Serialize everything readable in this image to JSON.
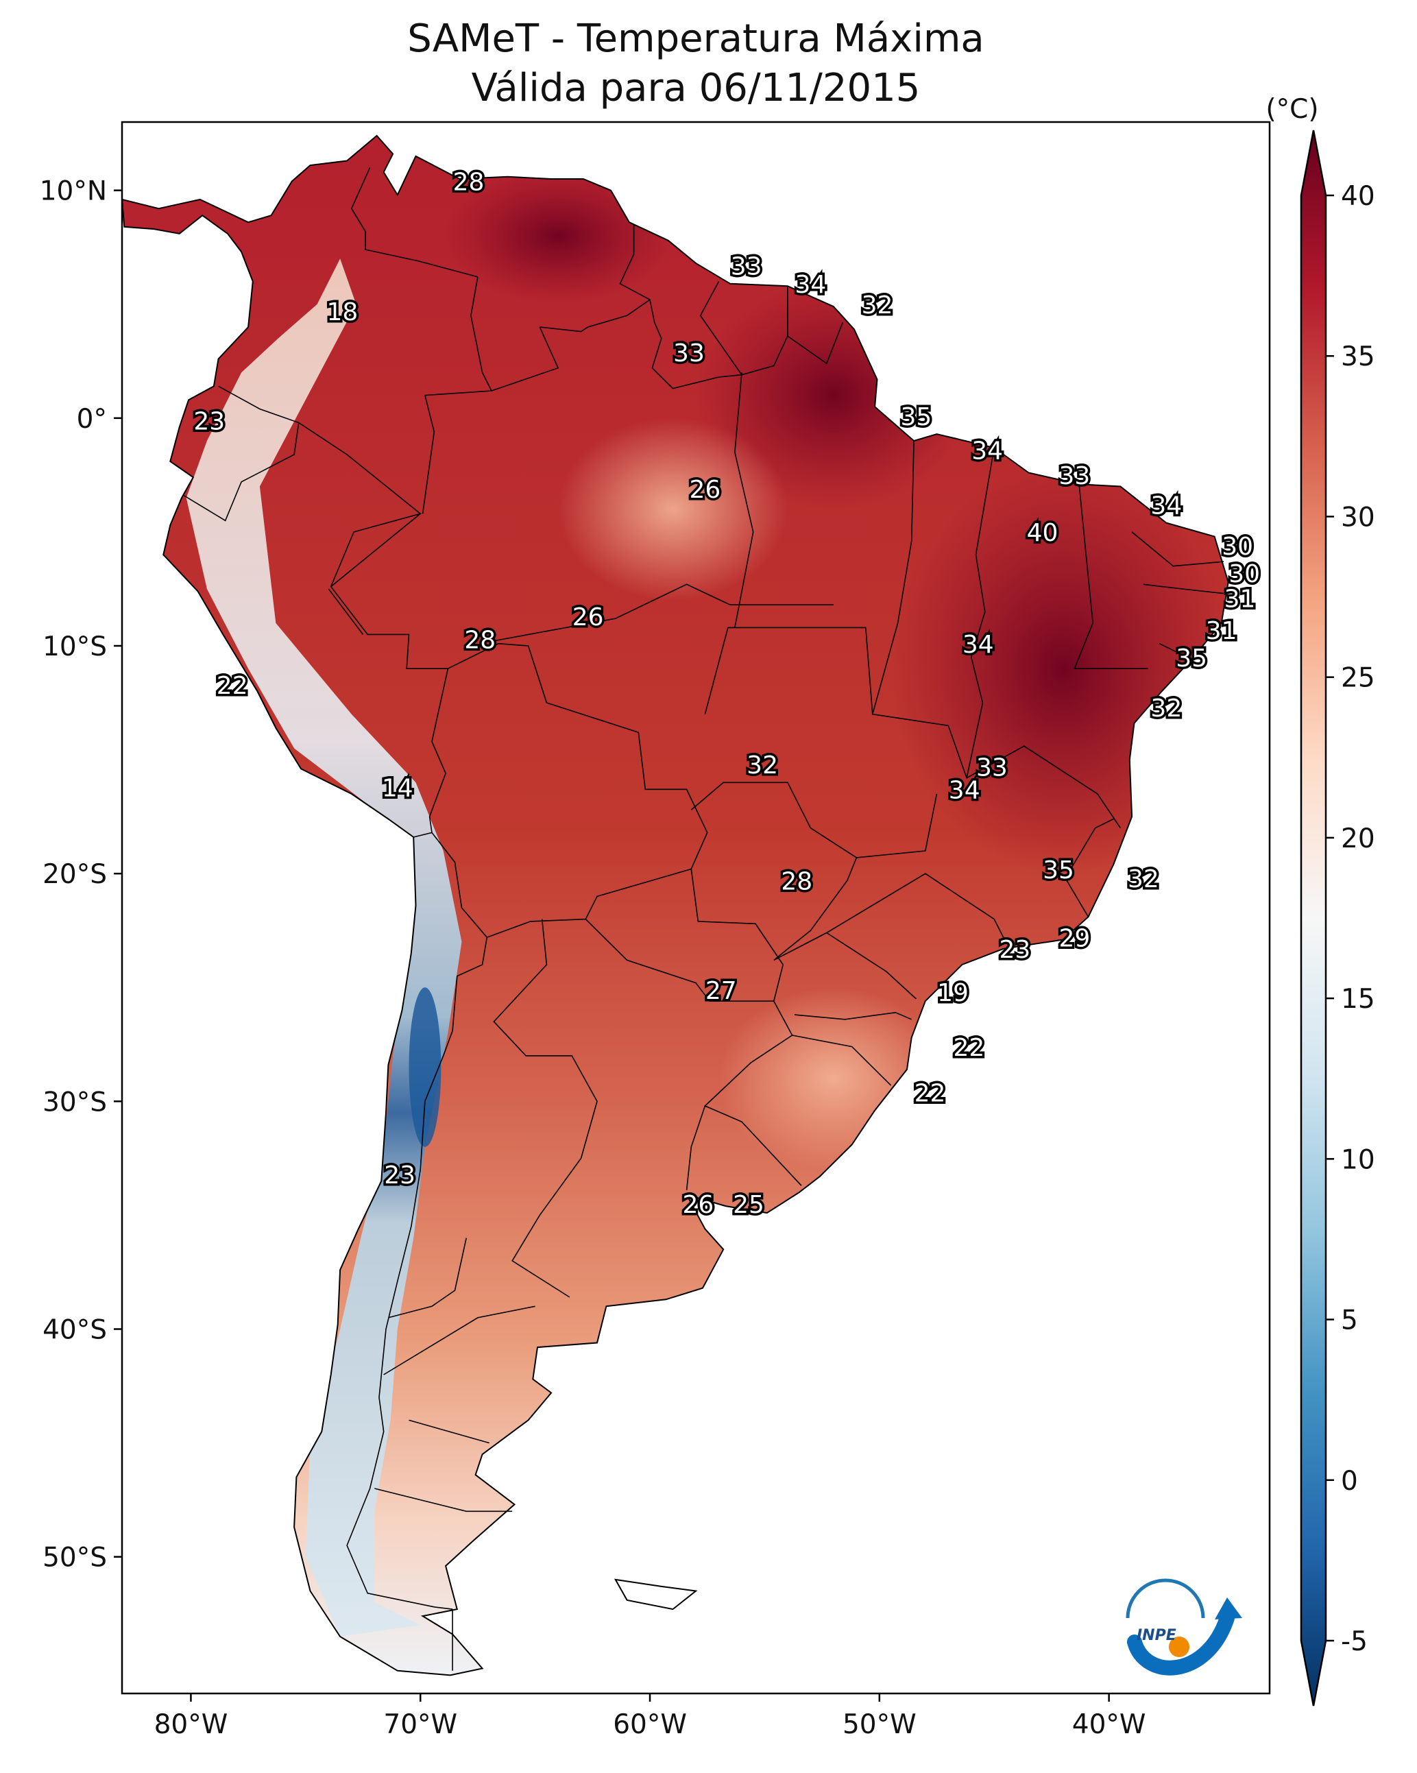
{
  "title": {
    "line1": "SAMeT - Temperatura Máxima",
    "line2": "Válida para 06/11/2015"
  },
  "map": {
    "lat_range": [
      -56,
      13
    ],
    "lon_range": [
      -83,
      -33
    ],
    "lat_ticks": [
      {
        "value": 10,
        "label": "10°N"
      },
      {
        "value": 0,
        "label": "0°"
      },
      {
        "value": -10,
        "label": "10°S"
      },
      {
        "value": -20,
        "label": "20°S"
      },
      {
        "value": -30,
        "label": "30°S"
      },
      {
        "value": -40,
        "label": "40°S"
      },
      {
        "value": -50,
        "label": "50°S"
      }
    ],
    "lon_ticks": [
      {
        "value": -80,
        "label": "80°W"
      },
      {
        "value": -70,
        "label": "70°W"
      },
      {
        "value": -60,
        "label": "60°W"
      },
      {
        "value": -50,
        "label": "50°W"
      },
      {
        "value": -40,
        "label": "40°W"
      }
    ]
  },
  "colorbar": {
    "unit": "(°C)",
    "min": -5,
    "max": 40,
    "ticks": [
      "40",
      "35",
      "30",
      "25",
      "20",
      "15",
      "10",
      "5",
      "0",
      "-5"
    ],
    "tick_values": [
      40,
      35,
      30,
      25,
      20,
      15,
      10,
      5,
      0,
      -5
    ],
    "colors": [
      "#053061",
      "#2166ac",
      "#4393c3",
      "#92c5de",
      "#d1e5f0",
      "#f7f7f7",
      "#fddbc7",
      "#f4a582",
      "#d6604d",
      "#b2182b",
      "#67001f"
    ]
  },
  "chart_data": {
    "type": "heatmap",
    "title": "SAMeT - Temperatura Máxima Válida para 06/11/2015",
    "variable": "Temperatura Máxima",
    "unit": "°C",
    "station_labels": [
      {
        "lon": -67.9,
        "lat": 10.3,
        "value": "28"
      },
      {
        "lon": -55.8,
        "lat": 6.6,
        "value": "33"
      },
      {
        "lon": -53.0,
        "lat": 5.8,
        "value": "34"
      },
      {
        "lon": -50.1,
        "lat": 4.9,
        "value": "32"
      },
      {
        "lon": -73.4,
        "lat": 4.6,
        "value": "18"
      },
      {
        "lon": -58.3,
        "lat": 2.8,
        "value": "33"
      },
      {
        "lon": -48.4,
        "lat": -0.0,
        "value": "35"
      },
      {
        "lon": -79.2,
        "lat": -0.2,
        "value": "23"
      },
      {
        "lon": -45.3,
        "lat": -1.5,
        "value": "34"
      },
      {
        "lon": -41.5,
        "lat": -2.6,
        "value": "33"
      },
      {
        "lon": -37.5,
        "lat": -3.9,
        "value": "34"
      },
      {
        "lon": -57.6,
        "lat": -3.2,
        "value": "26"
      },
      {
        "lon": -42.9,
        "lat": -5.1,
        "value": "40"
      },
      {
        "lon": -34.4,
        "lat": -5.7,
        "value": "30"
      },
      {
        "lon": -34.1,
        "lat": -6.9,
        "value": "30"
      },
      {
        "lon": -34.3,
        "lat": -8.0,
        "value": "31"
      },
      {
        "lon": -35.1,
        "lat": -9.4,
        "value": "31"
      },
      {
        "lon": -62.7,
        "lat": -8.8,
        "value": "26"
      },
      {
        "lon": -67.4,
        "lat": -9.8,
        "value": "28"
      },
      {
        "lon": -45.7,
        "lat": -10.0,
        "value": "34"
      },
      {
        "lon": -36.4,
        "lat": -10.6,
        "value": "35"
      },
      {
        "lon": -78.2,
        "lat": -11.8,
        "value": "22"
      },
      {
        "lon": -37.5,
        "lat": -12.8,
        "value": "32"
      },
      {
        "lon": -71.0,
        "lat": -16.3,
        "value": "14"
      },
      {
        "lon": -55.1,
        "lat": -15.3,
        "value": "32"
      },
      {
        "lon": -45.1,
        "lat": -15.4,
        "value": "33"
      },
      {
        "lon": -46.3,
        "lat": -16.4,
        "value": "34"
      },
      {
        "lon": -42.2,
        "lat": -19.9,
        "value": "35"
      },
      {
        "lon": -38.5,
        "lat": -20.3,
        "value": "32"
      },
      {
        "lon": -53.6,
        "lat": -20.4,
        "value": "28"
      },
      {
        "lon": -41.5,
        "lat": -22.9,
        "value": "29"
      },
      {
        "lon": -44.1,
        "lat": -23.4,
        "value": "23"
      },
      {
        "lon": -56.9,
        "lat": -25.2,
        "value": "27"
      },
      {
        "lon": -46.8,
        "lat": -25.3,
        "value": "19"
      },
      {
        "lon": -46.1,
        "lat": -27.7,
        "value": "22"
      },
      {
        "lon": -47.8,
        "lat": -29.7,
        "value": "22"
      },
      {
        "lon": -70.9,
        "lat": -33.3,
        "value": "23"
      },
      {
        "lon": -57.9,
        "lat": -34.6,
        "value": "26"
      },
      {
        "lon": -55.7,
        "lat": -34.6,
        "value": "25"
      }
    ]
  },
  "logo": {
    "text": "INPE"
  }
}
